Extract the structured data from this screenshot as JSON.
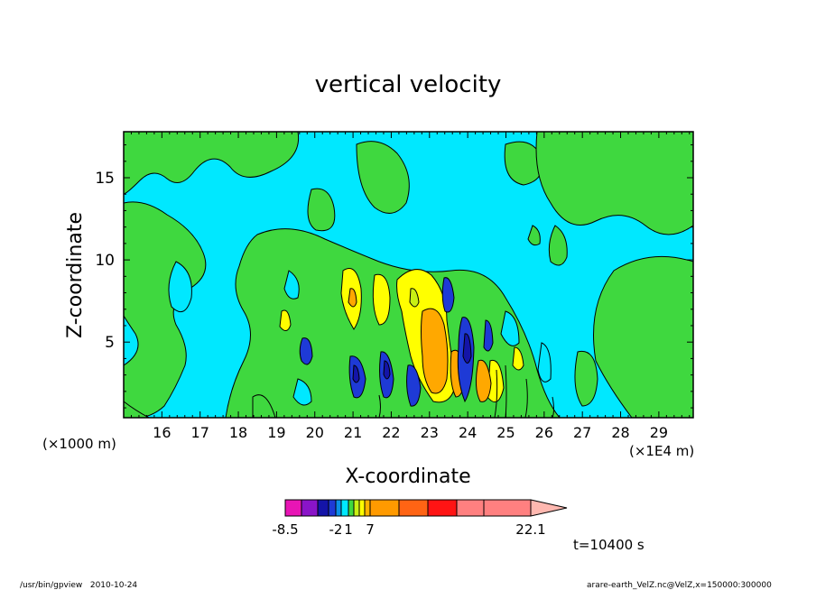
{
  "chart_data": {
    "type": "heatmap",
    "title": "vertical velocity",
    "xlabel": "X-coordinate",
    "ylabel": "Z-coordinate",
    "x_unit_left": "(×1000 m)",
    "x_unit_right": "(×1E4 m)",
    "x_ticks": [
      16,
      17,
      18,
      19,
      20,
      21,
      22,
      23,
      24,
      25,
      26,
      27,
      28,
      29
    ],
    "y_ticks": [
      5,
      10,
      15
    ],
    "xlim": [
      15.0,
      29.9
    ],
    "ylim": [
      0.4,
      17.8
    ],
    "colorbar": {
      "levels": [
        -8.5,
        -7,
        -5.5,
        -4,
        -2,
        -1,
        1,
        2,
        4,
        5.5,
        7,
        10,
        13,
        16,
        22.1
      ],
      "labels": [
        "-8.5",
        "-2",
        "1",
        "7",
        "22.1"
      ],
      "colors": [
        "#e815b5",
        "#8a14c8",
        "#1414a8",
        "#1e3ad6",
        "#0a8ee8",
        "#00e8ff",
        "#3fd83f",
        "#c8f014",
        "#ffff00",
        "#ffb400",
        "#ff9a00",
        "#ff6414",
        "#ff1414",
        "#ff8080",
        "#ffb8b0"
      ]
    },
    "time_label": "t=10400 s",
    "background_value_color": "#00e8ff",
    "features": [
      {
        "kind": "updraft",
        "x": 23.2,
        "z": 4.5,
        "level": "orange"
      },
      {
        "kind": "updraft",
        "x": 22.7,
        "z": 7.5,
        "level": "yellow"
      },
      {
        "kind": "updraft",
        "x": 21.0,
        "z": 7.5,
        "level": "yellow"
      },
      {
        "kind": "updraft",
        "x": 24.4,
        "z": 2.3,
        "level": "orange"
      },
      {
        "kind": "downdraft",
        "x": 23.6,
        "z": 7.0,
        "level": "blue"
      },
      {
        "kind": "downdraft",
        "x": 24.0,
        "z": 4.5,
        "level": "blue"
      },
      {
        "kind": "downdraft",
        "x": 21.2,
        "z": 2.5,
        "level": "blue"
      },
      {
        "kind": "downdraft",
        "x": 20.0,
        "z": 3.8,
        "level": "blue"
      },
      {
        "kind": "downdraft",
        "x": 22.0,
        "z": 2.5,
        "level": "blue"
      },
      {
        "kind": "downdraft",
        "x": 22.7,
        "z": 1.5,
        "level": "blue"
      }
    ]
  },
  "footer": {
    "left": "/usr/bin/gpview   2010-10-24",
    "right": "arare-earth_VelZ.nc@VelZ,x=150000:300000"
  }
}
